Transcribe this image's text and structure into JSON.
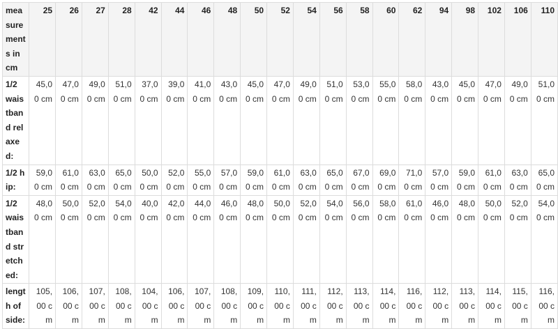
{
  "table": {
    "corner": "measurements in cm",
    "sizes": [
      "25",
      "26",
      "27",
      "28",
      "42",
      "44",
      "46",
      "48",
      "50",
      "52",
      "54",
      "56",
      "58",
      "60",
      "62",
      "94",
      "98",
      "102",
      "106",
      "110"
    ],
    "rows": [
      {
        "label": "1/2 waistband relaxed:",
        "values": [
          "45,00 cm",
          "47,00 cm",
          "49,00 cm",
          "51,00 cm",
          "37,00 cm",
          "39,00 cm",
          "41,00 cm",
          "43,00 cm",
          "45,00 cm",
          "47,00 cm",
          "49,00 cm",
          "51,00 cm",
          "53,00 cm",
          "55,00 cm",
          "58,00 cm",
          "43,00 cm",
          "45,00 cm",
          "47,00 cm",
          "49,00 cm",
          "51,00 cm"
        ]
      },
      {
        "label": "1/2 hip:",
        "values": [
          "59,00 cm",
          "61,00 cm",
          "63,00 cm",
          "65,00 cm",
          "50,00 cm",
          "52,00 cm",
          "55,00 cm",
          "57,00 cm",
          "59,00 cm",
          "61,00 cm",
          "63,00 cm",
          "65,00 cm",
          "67,00 cm",
          "69,00 cm",
          "71,00 cm",
          "57,00 cm",
          "59,00 cm",
          "61,00 cm",
          "63,00 cm",
          "65,00 cm"
        ]
      },
      {
        "label": "1/2 waistband stretched:",
        "values": [
          "48,00 cm",
          "50,00 cm",
          "52,00 cm",
          "54,00 cm",
          "40,00 cm",
          "42,00 cm",
          "44,00 cm",
          "46,00 cm",
          "48,00 cm",
          "50,00 cm",
          "52,00 cm",
          "54,00 cm",
          "56,00 cm",
          "58,00 cm",
          "61,00 cm",
          "46,00 cm",
          "48,00 cm",
          "50,00 cm",
          "52,00 cm",
          "54,00 cm"
        ]
      },
      {
        "label": "length of side:",
        "values": [
          "105,00 cm",
          "106,00 cm",
          "107,00 cm",
          "108,00 cm",
          "104,00 cm",
          "106,00 cm",
          "107,00 cm",
          "108,00 cm",
          "109,00 cm",
          "110,00 cm",
          "111,00 cm",
          "112,00 cm",
          "113,00 cm",
          "114,00 cm",
          "116,00 cm",
          "112,00 cm",
          "113,00 cm",
          "114,00 cm",
          "115,00 cm",
          "116,00 cm"
        ]
      }
    ]
  }
}
